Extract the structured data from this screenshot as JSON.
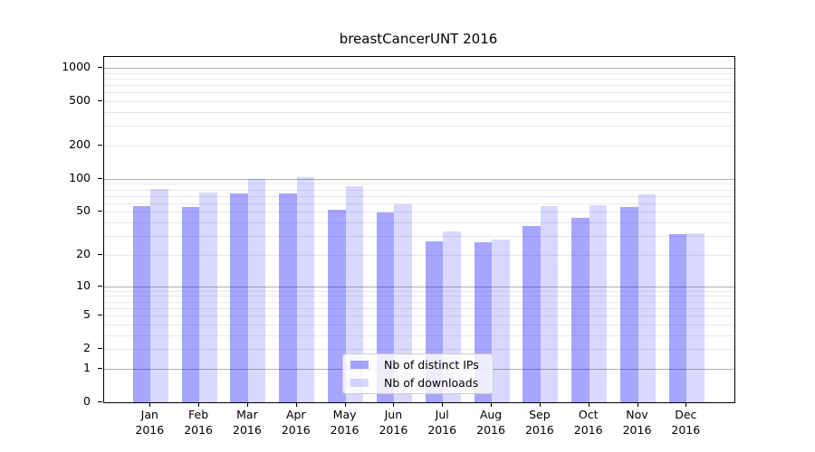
{
  "title": "breastCancerUNT 2016",
  "chart_data": {
    "type": "bar",
    "title": "breastCancerUNT 2016",
    "categories": [
      "Jan",
      "Feb",
      "Mar",
      "Apr",
      "May",
      "Jun",
      "Jul",
      "Aug",
      "Sep",
      "Oct",
      "Nov",
      "Dec"
    ],
    "category_year": "2016",
    "series": [
      {
        "name": "Nb of distinct IPs",
        "color": "rgba(0,0,255,0.35)",
        "values": [
          57,
          55,
          73,
          73,
          52,
          49,
          27,
          26,
          37,
          44,
          55,
          31
        ]
      },
      {
        "name": "Nb of downloads",
        "color": "rgba(0,0,255,0.15)",
        "values": [
          81,
          75,
          100,
          104,
          85,
          59,
          33,
          28,
          56,
          58,
          72,
          32
        ]
      }
    ],
    "xlabel": "",
    "ylabel": "",
    "yscale": "log1p",
    "ylim": [
      0,
      1240
    ],
    "yticks": [
      0,
      1,
      2,
      5,
      10,
      20,
      50,
      100,
      200,
      500,
      1000
    ],
    "major_gridlines": [
      1,
      10,
      100,
      1000
    ],
    "grid": true,
    "legend_position": "lower-center",
    "colors": {
      "bar_dark": "rgba(0,0,255,0.35)",
      "bar_light": "rgba(0,0,255,0.15)",
      "major_grid": "#b0b0b0",
      "minor_grid": "#e8e8e8",
      "spine": "#000000",
      "background": "#ffffff"
    }
  },
  "legend": {
    "items": [
      {
        "label": "Nb of distinct IPs",
        "color": "rgba(0,0,255,0.35)"
      },
      {
        "label": "Nb of downloads",
        "color": "rgba(0,0,255,0.15)"
      }
    ]
  }
}
